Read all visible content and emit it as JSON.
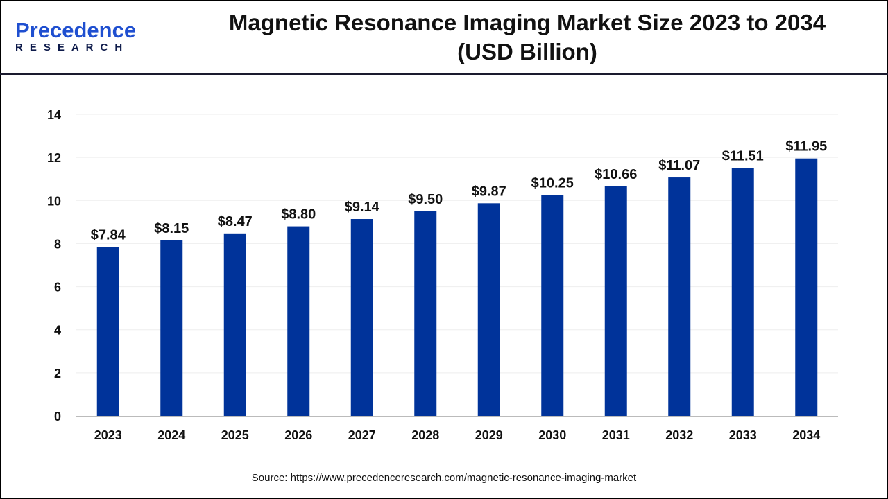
{
  "logo": {
    "text": "Precedence",
    "subtext": "RESEARCH"
  },
  "source": "Source: https://www.precedenceresearch.com/magnetic-resonance-imaging-market",
  "colors": {
    "bar": "#00339A",
    "grid": "#eeeeee",
    "axis": "#bbbbbb"
  },
  "chart_data": {
    "type": "bar",
    "title": "Magnetic Resonance Imaging Market Size 2023 to 2034",
    "subtitle": "(USD Billion)",
    "categories": [
      "2023",
      "2024",
      "2025",
      "2026",
      "2027",
      "2028",
      "2029",
      "2030",
      "2031",
      "2032",
      "2033",
      "2034"
    ],
    "values": [
      7.84,
      8.15,
      8.47,
      8.8,
      9.14,
      9.5,
      9.87,
      10.25,
      10.66,
      11.07,
      11.51,
      11.95
    ],
    "data_labels": [
      "$7.84",
      "$8.15",
      "$8.47",
      "$8.80",
      "$9.14",
      "$9.50",
      "$9.87",
      "$10.25",
      "$10.66",
      "$11.07",
      "$11.51",
      "$11.95"
    ],
    "yticks": [
      0,
      2,
      4,
      6,
      8,
      10,
      12,
      14
    ],
    "ylim": [
      0,
      14
    ],
    "grid": true,
    "xlabel": "",
    "ylabel": ""
  }
}
